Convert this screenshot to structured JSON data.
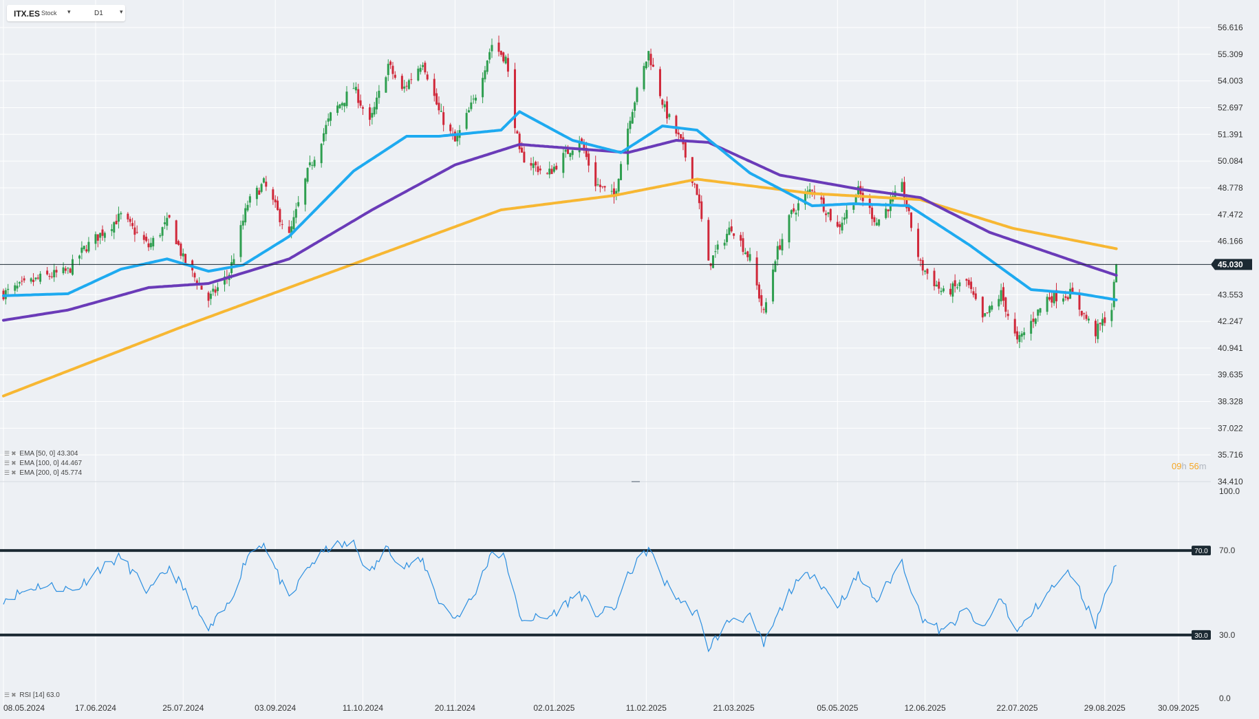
{
  "toolbar": {
    "symbol": "ITX.ES",
    "type": "Stock",
    "timeframe": "D1"
  },
  "indicators": {
    "ema50_label": "EMA [50, 0] 43.304",
    "ema100_label": "EMA [100, 0] 44.467",
    "ema200_label": "EMA [200, 0] 45.774",
    "rsi_label": "RSI [14] 63.0"
  },
  "countdown": {
    "h_val": "09",
    "h_unit": "h",
    "m_val": "56",
    "m_unit": "m"
  },
  "colors": {
    "background": "#edf0f4",
    "grid": "#ffffff",
    "bull": "#2e9e4f",
    "bear": "#d0283a",
    "ema50": "#1eaaf0",
    "ema100": "#6a3bb8",
    "ema200": "#f7b733",
    "rsi": "#2a8ee0",
    "level_line": "#1c2a33",
    "price_tag": "#1c2a33"
  },
  "chart_data": [
    {
      "type": "candlestick",
      "symbol": "ITX.ES",
      "timeframe": "D1",
      "y_ticks": [
        "56.616",
        "55.309",
        "54.003",
        "52.697",
        "51.391",
        "50.084",
        "48.778",
        "47.472",
        "46.166",
        "43.553",
        "42.247",
        "40.941",
        "39.635",
        "38.328",
        "37.022",
        "35.716",
        "34.410"
      ],
      "ylim": [
        34.41,
        56.616
      ],
      "x_ticks": [
        "08.05.2024",
        "17.06.2024",
        "25.07.2024",
        "03.09.2024",
        "11.10.2024",
        "20.11.2024",
        "02.01.2025",
        "11.02.2025",
        "21.03.2025",
        "05.05.2025",
        "12.06.2025",
        "22.07.2025",
        "29.08.2025",
        "30.09.2025"
      ],
      "current_price": "45.030",
      "anchors": [
        {
          "d": "2024-05-08",
          "c": 43.6
        },
        {
          "d": "2024-05-25",
          "c": 44.4
        },
        {
          "d": "2024-06-05",
          "c": 44.7
        },
        {
          "d": "2024-06-12",
          "c": 45.8
        },
        {
          "d": "2024-06-28",
          "c": 47.4
        },
        {
          "d": "2024-07-10",
          "c": 45.9
        },
        {
          "d": "2024-07-19",
          "c": 47.2
        },
        {
          "d": "2024-07-25",
          "c": 45.3
        },
        {
          "d": "2024-08-05",
          "c": 43.3
        },
        {
          "d": "2024-08-14",
          "c": 44.6
        },
        {
          "d": "2024-08-22",
          "c": 48.0
        },
        {
          "d": "2024-08-29",
          "c": 49.0
        },
        {
          "d": "2024-09-09",
          "c": 46.4
        },
        {
          "d": "2024-09-17",
          "c": 49.5
        },
        {
          "d": "2024-09-27",
          "c": 52.3
        },
        {
          "d": "2024-10-07",
          "c": 53.7
        },
        {
          "d": "2024-10-14",
          "c": 51.9
        },
        {
          "d": "2024-10-22",
          "c": 54.8
        },
        {
          "d": "2024-10-28",
          "c": 53.5
        },
        {
          "d": "2024-11-06",
          "c": 55.0
        },
        {
          "d": "2024-11-13",
          "c": 52.5
        },
        {
          "d": "2024-11-20",
          "c": 51.0
        },
        {
          "d": "2024-11-28",
          "c": 53.0
        },
        {
          "d": "2024-12-06",
          "c": 55.8
        },
        {
          "d": "2024-12-12",
          "c": 55.1
        },
        {
          "d": "2024-12-18",
          "c": 50.4
        },
        {
          "d": "2024-12-30",
          "c": 49.4
        },
        {
          "d": "2025-01-13",
          "c": 51.2
        },
        {
          "d": "2025-01-20",
          "c": 49.0
        },
        {
          "d": "2025-01-28",
          "c": 48.3
        },
        {
          "d": "2025-02-04",
          "c": 52.3
        },
        {
          "d": "2025-02-12",
          "c": 55.4
        },
        {
          "d": "2025-02-19",
          "c": 52.6
        },
        {
          "d": "2025-02-26",
          "c": 51.0
        },
        {
          "d": "2025-03-05",
          "c": 48.6
        },
        {
          "d": "2025-03-10",
          "c": 45.0
        },
        {
          "d": "2025-03-20",
          "c": 46.9
        },
        {
          "d": "2025-03-28",
          "c": 45.3
        },
        {
          "d": "2025-04-03",
          "c": 42.6
        },
        {
          "d": "2025-04-08",
          "c": 45.4
        },
        {
          "d": "2025-04-15",
          "c": 47.5
        },
        {
          "d": "2025-04-24",
          "c": 48.8
        },
        {
          "d": "2025-05-05",
          "c": 46.8
        },
        {
          "d": "2025-05-14",
          "c": 48.6
        },
        {
          "d": "2025-05-22",
          "c": 47.1
        },
        {
          "d": "2025-06-02",
          "c": 48.8
        },
        {
          "d": "2025-06-10",
          "c": 45.0
        },
        {
          "d": "2025-06-20",
          "c": 43.6
        },
        {
          "d": "2025-06-30",
          "c": 44.2
        },
        {
          "d": "2025-07-07",
          "c": 42.3
        },
        {
          "d": "2025-07-15",
          "c": 43.6
        },
        {
          "d": "2025-07-22",
          "c": 41.2
        },
        {
          "d": "2025-08-04",
          "c": 43.4
        },
        {
          "d": "2025-08-14",
          "c": 43.6
        },
        {
          "d": "2025-08-25",
          "c": 41.7
        },
        {
          "d": "2025-09-01",
          "c": 42.9
        },
        {
          "d": "2025-09-03",
          "c": 45.03
        }
      ],
      "ema_anchors": {
        "ema50": [
          {
            "d": "2024-05-08",
            "v": 43.5
          },
          {
            "d": "2024-06-05",
            "v": 43.6
          },
          {
            "d": "2024-06-28",
            "v": 44.8
          },
          {
            "d": "2024-07-18",
            "v": 45.3
          },
          {
            "d": "2024-08-05",
            "v": 44.7
          },
          {
            "d": "2024-08-20",
            "v": 45.0
          },
          {
            "d": "2024-09-09",
            "v": 46.4
          },
          {
            "d": "2024-10-07",
            "v": 49.6
          },
          {
            "d": "2024-10-30",
            "v": 51.3
          },
          {
            "d": "2024-11-13",
            "v": 51.3
          },
          {
            "d": "2024-12-10",
            "v": 51.6
          },
          {
            "d": "2024-12-18",
            "v": 52.5
          },
          {
            "d": "2025-01-10",
            "v": 51.1
          },
          {
            "d": "2025-01-31",
            "v": 50.5
          },
          {
            "d": "2025-02-18",
            "v": 51.8
          },
          {
            "d": "2025-03-05",
            "v": 51.6
          },
          {
            "d": "2025-03-28",
            "v": 49.5
          },
          {
            "d": "2025-04-24",
            "v": 47.9
          },
          {
            "d": "2025-05-12",
            "v": 48.0
          },
          {
            "d": "2025-06-05",
            "v": 47.9
          },
          {
            "d": "2025-07-01",
            "v": 46.0
          },
          {
            "d": "2025-07-28",
            "v": 43.8
          },
          {
            "d": "2025-08-18",
            "v": 43.6
          },
          {
            "d": "2025-09-03",
            "v": 43.3
          }
        ],
        "ema100": [
          {
            "d": "2024-05-08",
            "v": 42.3
          },
          {
            "d": "2024-06-05",
            "v": 42.8
          },
          {
            "d": "2024-07-10",
            "v": 43.9
          },
          {
            "d": "2024-08-05",
            "v": 44.1
          },
          {
            "d": "2024-09-09",
            "v": 45.3
          },
          {
            "d": "2024-10-15",
            "v": 47.7
          },
          {
            "d": "2024-11-20",
            "v": 49.9
          },
          {
            "d": "2024-12-18",
            "v": 50.9
          },
          {
            "d": "2025-02-03",
            "v": 50.5
          },
          {
            "d": "2025-02-24",
            "v": 51.1
          },
          {
            "d": "2025-03-10",
            "v": 51.0
          },
          {
            "d": "2025-04-10",
            "v": 49.4
          },
          {
            "d": "2025-05-15",
            "v": 48.7
          },
          {
            "d": "2025-06-10",
            "v": 48.3
          },
          {
            "d": "2025-07-10",
            "v": 46.6
          },
          {
            "d": "2025-08-18",
            "v": 45.1
          },
          {
            "d": "2025-09-03",
            "v": 44.5
          }
        ],
        "ema200": [
          {
            "d": "2024-05-08",
            "v": 38.6
          },
          {
            "d": "2024-07-25",
            "v": 42.0
          },
          {
            "d": "2024-09-09",
            "v": 43.9
          },
          {
            "d": "2024-12-10",
            "v": 47.7
          },
          {
            "d": "2025-01-28",
            "v": 48.4
          },
          {
            "d": "2025-03-05",
            "v": 49.2
          },
          {
            "d": "2025-04-24",
            "v": 48.5
          },
          {
            "d": "2025-06-10",
            "v": 48.2
          },
          {
            "d": "2025-07-20",
            "v": 46.8
          },
          {
            "d": "2025-09-03",
            "v": 45.8
          }
        ]
      }
    },
    {
      "type": "line",
      "name": "RSI [14]",
      "ylim": [
        0,
        100
      ],
      "y_ticks": [
        "100.0",
        "70.0",
        "30.0",
        "0.0"
      ],
      "levels": [
        70.0,
        30.0
      ],
      "current": 63.0,
      "anchors": [
        {
          "d": "2024-05-08",
          "v": 47
        },
        {
          "d": "2024-05-25",
          "v": 54
        },
        {
          "d": "2024-06-08",
          "v": 51
        },
        {
          "d": "2024-06-18",
          "v": 61
        },
        {
          "d": "2024-06-28",
          "v": 67
        },
        {
          "d": "2024-07-10",
          "v": 50
        },
        {
          "d": "2024-07-19",
          "v": 62
        },
        {
          "d": "2024-07-25",
          "v": 52
        },
        {
          "d": "2024-08-05",
          "v": 32
        },
        {
          "d": "2024-08-14",
          "v": 45
        },
        {
          "d": "2024-08-22",
          "v": 68
        },
        {
          "d": "2024-08-29",
          "v": 74
        },
        {
          "d": "2024-09-09",
          "v": 46
        },
        {
          "d": "2024-09-17",
          "v": 62
        },
        {
          "d": "2024-09-27",
          "v": 72
        },
        {
          "d": "2024-10-07",
          "v": 73
        },
        {
          "d": "2024-10-14",
          "v": 59
        },
        {
          "d": "2024-10-22",
          "v": 72
        },
        {
          "d": "2024-10-28",
          "v": 62
        },
        {
          "d": "2024-11-06",
          "v": 65
        },
        {
          "d": "2024-11-13",
          "v": 46
        },
        {
          "d": "2024-11-20",
          "v": 38
        },
        {
          "d": "2024-11-28",
          "v": 48
        },
        {
          "d": "2024-12-06",
          "v": 70
        },
        {
          "d": "2024-12-12",
          "v": 66
        },
        {
          "d": "2024-12-18",
          "v": 38
        },
        {
          "d": "2024-12-30",
          "v": 38
        },
        {
          "d": "2025-01-13",
          "v": 50
        },
        {
          "d": "2025-01-20",
          "v": 40
        },
        {
          "d": "2025-01-28",
          "v": 42
        },
        {
          "d": "2025-02-04",
          "v": 60
        },
        {
          "d": "2025-02-12",
          "v": 71
        },
        {
          "d": "2025-02-19",
          "v": 55
        },
        {
          "d": "2025-02-26",
          "v": 46
        },
        {
          "d": "2025-03-05",
          "v": 40
        },
        {
          "d": "2025-03-10",
          "v": 24
        },
        {
          "d": "2025-03-20",
          "v": 38
        },
        {
          "d": "2025-03-28",
          "v": 38
        },
        {
          "d": "2025-04-03",
          "v": 25
        },
        {
          "d": "2025-04-08",
          "v": 37
        },
        {
          "d": "2025-04-15",
          "v": 52
        },
        {
          "d": "2025-04-24",
          "v": 60
        },
        {
          "d": "2025-05-05",
          "v": 44
        },
        {
          "d": "2025-05-14",
          "v": 58
        },
        {
          "d": "2025-05-22",
          "v": 46
        },
        {
          "d": "2025-06-02",
          "v": 65
        },
        {
          "d": "2025-06-10",
          "v": 39
        },
        {
          "d": "2025-06-20",
          "v": 31
        },
        {
          "d": "2025-06-30",
          "v": 42
        },
        {
          "d": "2025-07-07",
          "v": 32
        },
        {
          "d": "2025-07-15",
          "v": 48
        },
        {
          "d": "2025-07-22",
          "v": 31
        },
        {
          "d": "2025-08-04",
          "v": 50
        },
        {
          "d": "2025-08-14",
          "v": 60
        },
        {
          "d": "2025-08-25",
          "v": 35
        },
        {
          "d": "2025-08-30",
          "v": 52
        },
        {
          "d": "2025-09-03",
          "v": 63
        }
      ]
    }
  ]
}
